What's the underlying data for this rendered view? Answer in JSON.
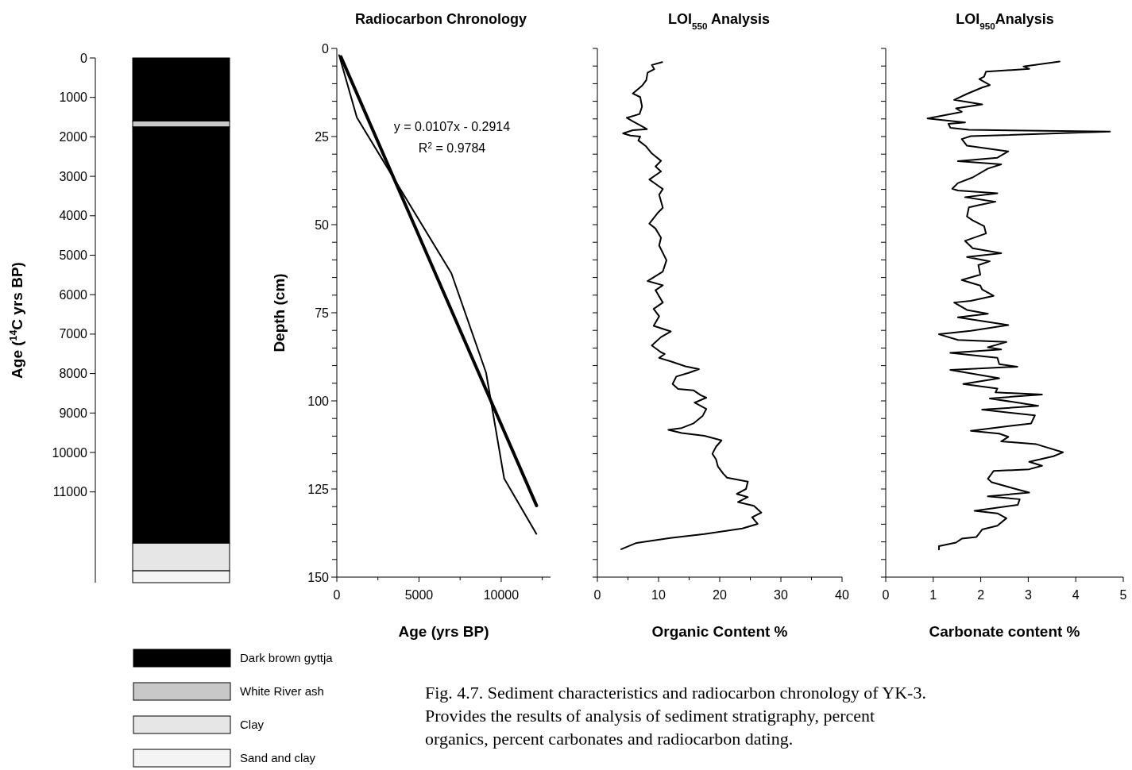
{
  "chart_data": [
    {
      "type": "bar",
      "stacked": true,
      "ylabel": "Age ($^{14}$C yrs BP)",
      "categories": [
        null
      ],
      "ylim": [
        13300,
        0
      ],
      "tick_labels": "y",
      "legend": "bottom",
      "yticks": [
        0,
        1000,
        2000,
        3000,
        4000,
        5000,
        6000,
        7000,
        8000,
        9000,
        10000,
        11000
      ],
      "series": [
        {
          "name": "Dark brown gyttja",
          "color": "#000000",
          "values": [
            1600
          ]
        },
        {
          "name": "White River ash",
          "color": "#c8c8c8",
          "values": [
            150
          ]
        },
        {
          "color": "#000000",
          "values": [
            10550
          ]
        },
        {
          "name": "Clay",
          "color": "#e6e6e6",
          "values": [
            700
          ]
        },
        {
          "name": "Sand and clay",
          "color": "#f4f4f4",
          "values": [
            300
          ]
        }
      ],
      "annotations": [
        "Fig. 4.7. Sediment characteristics and radiocarbon chronology of YK-3. Provides the results of analysis of sediment stratigraphy, percent organics, percent carbonates and radiocarbon dating."
      ]
    },
    {
      "type": "line",
      "title": "Radiocarbon Chronology",
      "xlabel": "Age (yrs BP)",
      "ylabel": "Depth (cm)",
      "xlim": [
        0,
        13000
      ],
      "ylim": [
        150,
        0
      ],
      "xticks": [
        0,
        {
          "value": 2500,
          "label": null
        },
        5000,
        {
          "value": 7500,
          "label": null
        },
        10000,
        {
          "value": 12500,
          "label": null
        }
      ],
      "yticks": [
        0,
        {
          "value": 5,
          "label": null
        },
        {
          "value": 10,
          "label": null
        },
        {
          "value": 15,
          "label": null
        },
        {
          "value": 20,
          "label": null
        },
        25,
        {
          "value": 30,
          "label": null
        },
        {
          "value": 35,
          "label": null
        },
        {
          "value": 40,
          "label": null
        },
        {
          "value": 45,
          "label": null
        },
        50,
        {
          "value": 55,
          "label": null
        },
        {
          "value": 60,
          "label": null
        },
        {
          "value": 65,
          "label": null
        },
        {
          "value": 70,
          "label": null
        },
        75,
        {
          "value": 80,
          "label": null
        },
        {
          "value": 85,
          "label": null
        },
        {
          "value": 90,
          "label": null
        },
        {
          "value": 95,
          "label": null
        },
        100,
        {
          "value": 105,
          "label": null
        },
        {
          "value": 110,
          "label": null
        },
        {
          "value": 115,
          "label": null
        },
        {
          "value": 120,
          "label": null
        },
        125,
        {
          "value": 130,
          "label": null
        },
        {
          "value": 135,
          "label": null
        },
        {
          "value": 140,
          "label": null
        },
        {
          "value": 145,
          "label": null
        },
        150
      ],
      "series": [
        {
          "color": "#000000",
          "x": [
            140,
            1220,
            6970,
            9080,
            10180,
            12140
          ],
          "values": [
            1.9,
            19.6,
            63.8,
            92,
            122,
            137.7
          ]
        },
        {
          "type": "line",
          "color": "#000000",
          "x": [
            250,
            12150
          ],
          "values": [
            2.4,
            129.7
          ]
        }
      ],
      "annotations": [
        "y = 0.0107x - 0.2914",
        "R$^{2}$ = 0.9784"
      ]
    },
    {
      "type": "line",
      "title": "LOI$_{550}$ Analysis",
      "xlabel": "Organic Content %",
      "xlim": [
        0,
        40
      ],
      "ylim": [
        150,
        0
      ],
      "tick_labels": "x",
      "xticks": [
        0,
        {
          "value": 5,
          "label": null
        },
        10,
        {
          "value": 15,
          "label": null
        },
        20,
        {
          "value": 25,
          "label": null
        },
        30,
        {
          "value": 35,
          "label": null
        },
        40
      ],
      "yticks": [
        {
          "value": 0,
          "label": null
        },
        {
          "value": 5,
          "label": null
        },
        {
          "value": 10,
          "label": null
        },
        {
          "value": 15,
          "label": null
        },
        {
          "value": 20,
          "label": null
        },
        {
          "value": 25,
          "label": null
        },
        {
          "value": 30,
          "label": null
        },
        {
          "value": 35,
          "label": null
        },
        {
          "value": 40,
          "label": null
        },
        {
          "value": 45,
          "label": null
        },
        {
          "value": 50,
          "label": null
        },
        {
          "value": 55,
          "label": null
        },
        {
          "value": 60,
          "label": null
        },
        {
          "value": 65,
          "label": null
        },
        {
          "value": 70,
          "label": null
        },
        {
          "value": 75,
          "label": null
        },
        {
          "value": 80,
          "label": null
        },
        {
          "value": 85,
          "label": null
        },
        {
          "value": 90,
          "label": null
        },
        {
          "value": 95,
          "label": null
        },
        {
          "value": 100,
          "label": null
        },
        {
          "value": 105,
          "label": null
        },
        {
          "value": 110,
          "label": null
        },
        {
          "value": 115,
          "label": null
        },
        {
          "value": 120,
          "label": null
        },
        {
          "value": 125,
          "label": null
        },
        {
          "value": 130,
          "label": null
        },
        {
          "value": 135,
          "label": null
        },
        {
          "value": 140,
          "label": null
        },
        {
          "value": 145,
          "label": null
        },
        {
          "value": 150,
          "label": null
        }
      ],
      "series": [
        {
          "color": "#000000",
          "x": [
            10.6,
            8.9,
            9.3,
            8.2,
            8.0,
            7.3,
            5.8,
            7.0,
            7.3,
            6.9,
            4.8,
            5.8,
            7.3,
            8.1,
            5.8,
            4.2,
            5.4,
            7.0,
            6.7,
            7.9,
            8.9,
            10.4,
            9.5,
            10.4,
            8.5,
            9.8,
            10.7,
            10.1,
            10.7,
            9.8,
            8.5,
            9.5,
            10.4,
            10.1,
            11.3,
            10.7,
            8.2,
            10.7,
            9.5,
            10.7,
            9.2,
            10.1,
            9.2,
            12.0,
            10.4,
            8.9,
            10.4,
            11.0,
            10.1,
            12.0,
            14.4,
            16.6,
            15.0,
            12.9,
            12.3,
            13.2,
            15.7,
            16.9,
            17.8,
            15.9,
            17.8,
            17.2,
            15.7,
            13.8,
            11.6,
            13.8,
            17.5,
            20.3,
            19.4,
            18.8,
            19.4,
            19.7,
            20.6,
            21.2,
            24.6,
            24.3,
            22.8,
            24.6,
            23.0,
            25.6,
            26.8,
            25.3,
            26.2,
            23.7,
            17.5,
            11.9,
            6.4,
            3.9
          ],
          "values": [
            3.9,
            4.7,
            5.9,
            6.9,
            9.0,
            10.6,
            12.8,
            13.8,
            16.5,
            18.6,
            19.7,
            20.7,
            22.1,
            22.9,
            23.2,
            24.1,
            24.7,
            25.0,
            26.1,
            27.7,
            29.8,
            31.9,
            33.5,
            34.9,
            37.2,
            38.8,
            39.9,
            41.5,
            45.2,
            46.8,
            49.7,
            51.1,
            53.7,
            55.9,
            60.1,
            63.3,
            66,
            67.2,
            68.6,
            72.1,
            73.9,
            76,
            78.7,
            80.3,
            81.9,
            84.3,
            86.2,
            86.7,
            87.8,
            88.8,
            90.2,
            91,
            92,
            93.1,
            95.2,
            96.6,
            97,
            98.4,
            99.1,
            100.5,
            102.3,
            104.3,
            106.4,
            107.7,
            108.2,
            109.1,
            109.9,
            111.2,
            113,
            115,
            116.6,
            118.6,
            120.7,
            121.8,
            122.9,
            125,
            126.4,
            127.3,
            128.7,
            129.8,
            131.7,
            133,
            134.9,
            136.2,
            137.8,
            138.9,
            140.3,
            142.1
          ]
        }
      ]
    },
    {
      "type": "line",
      "title": "LOI$_{950}$Analysis",
      "xlabel": "Carbonate content %",
      "xlim": [
        0,
        5
      ],
      "ylim": [
        150,
        0
      ],
      "tick_labels": "x",
      "xticks": [
        0,
        1,
        2,
        3,
        4,
        5
      ],
      "yticks": [
        {
          "value": 0,
          "label": null
        },
        {
          "value": 5,
          "label": null
        },
        {
          "value": 10,
          "label": null
        },
        {
          "value": 15,
          "label": null
        },
        {
          "value": 20,
          "label": null
        },
        {
          "value": 25,
          "label": null
        },
        {
          "value": 30,
          "label": null
        },
        {
          "value": 35,
          "label": null
        },
        {
          "value": 40,
          "label": null
        },
        {
          "value": 45,
          "label": null
        },
        {
          "value": 50,
          "label": null
        },
        {
          "value": 55,
          "label": null
        },
        {
          "value": 60,
          "label": null
        },
        {
          "value": 65,
          "label": null
        },
        {
          "value": 70,
          "label": null
        },
        {
          "value": 75,
          "label": null
        },
        {
          "value": 80,
          "label": null
        },
        {
          "value": 85,
          "label": null
        },
        {
          "value": 90,
          "label": null
        },
        {
          "value": 95,
          "label": null
        },
        {
          "value": 100,
          "label": null
        },
        {
          "value": 105,
          "label": null
        },
        {
          "value": 110,
          "label": null
        },
        {
          "value": 115,
          "label": null
        },
        {
          "value": 120,
          "label": null
        },
        {
          "value": 125,
          "label": null
        },
        {
          "value": 130,
          "label": null
        },
        {
          "value": 135,
          "label": null
        },
        {
          "value": 140,
          "label": null
        },
        {
          "value": 145,
          "label": null
        },
        {
          "value": 150,
          "label": null
        }
      ],
      "series": [
        {
          "color": "#000000",
          "x": [
            3.66,
            2.9,
            3.02,
            2.11,
            2.07,
            1.97,
            2.19,
            2.03,
            1.71,
            1.44,
            2.03,
            1.48,
            1.6,
            0.88,
            1.67,
            1.32,
            1.36,
            1.75,
            4.72,
            1.79,
            1.6,
            1.71,
            2.58,
            2.35,
            1.52,
            2.43,
            2.15,
            1.83,
            1.52,
            1.4,
            1.52,
            2.35,
            1.67,
            2.31,
            1.95,
            1.75,
            1.71,
            1.83,
            2.07,
            2.11,
            1.67,
            1.83,
            2.43,
            1.71,
            2.19,
            1.95,
            1.99,
            1.6,
            1.99,
            2.03,
            2.27,
            1.79,
            1.44,
            1.71,
            2.15,
            1.52,
            2.58,
            1.79,
            1.12,
            1.52,
            2.54,
            2.15,
            2.43,
            1.36,
            2.35,
            2.39,
            2.77,
            1.36,
            2.39,
            1.63,
            2.35,
            2.31,
            3.29,
            2.19,
            3.21,
            2.03,
            3.14,
            3.06,
            1.79,
            2.39,
            2.58,
            2.43,
            3.17,
            3.73,
            3.53,
            3.02,
            3.29,
            3.02,
            2.27,
            2.15,
            2.23,
            2.66,
            3.02,
            2.15,
            2.82,
            2.78,
            1.87,
            2.35,
            2.54,
            2.35,
            2.03,
            1.91,
            1.6,
            1.48,
            1.12,
            1.12
          ],
          "values": [
            3.7,
            5.1,
            5.8,
            6.6,
            8.0,
            8.7,
            10.4,
            11.1,
            12.9,
            14.6,
            15.9,
            17.0,
            18.0,
            19.9,
            21.0,
            21.4,
            22.5,
            23.1,
            23.6,
            24.9,
            25.7,
            27.6,
            29.2,
            31.0,
            32.0,
            32.9,
            34.1,
            36.6,
            38.2,
            39.8,
            40.3,
            41.1,
            42.2,
            43.5,
            44.5,
            45.1,
            47.7,
            48.8,
            50.4,
            52.5,
            54.6,
            56.7,
            58.1,
            59.2,
            60.4,
            61.5,
            64.2,
            65.7,
            67.3,
            68.4,
            70.2,
            71.6,
            72.1,
            74.2,
            75.3,
            76.3,
            78.5,
            80.1,
            81.1,
            82.7,
            83.3,
            84.8,
            85.4,
            86.4,
            87.8,
            89.6,
            90.3,
            91.2,
            93.6,
            95.2,
            96.5,
            97.6,
            98.2,
            99.3,
            101.4,
            102.5,
            104.1,
            106.4,
            108.5,
            109.3,
            110.2,
            111.5,
            112.3,
            114.6,
            115.7,
            117.3,
            118.4,
            119.4,
            119.9,
            122.1,
            123.1,
            124.7,
            126.0,
            127.1,
            127.9,
            129.5,
            131.2,
            131.9,
            133.3,
            135.4,
            136.5,
            138.6,
            139.1,
            140.2,
            141.2,
            142.2
          ]
        }
      ]
    }
  ]
}
